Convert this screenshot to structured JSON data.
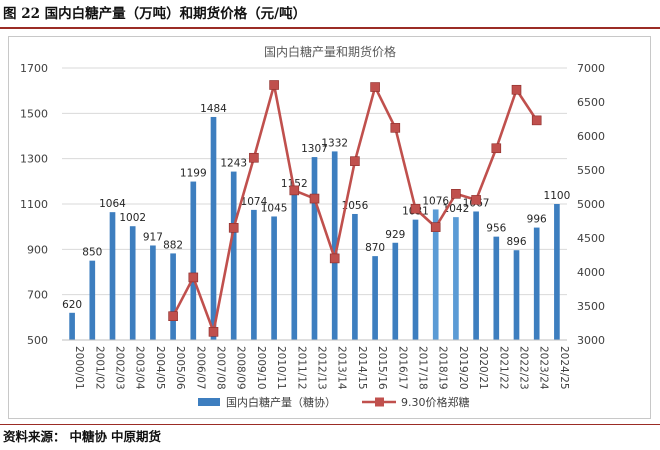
{
  "figure": {
    "caption": "图 22 国内白糖产量（万吨）和期货价格（元/吨）"
  },
  "source": {
    "label": "资料来源：",
    "items": [
      "中糖协",
      "中原期货"
    ]
  },
  "chart_data": {
    "type": "bar+line",
    "title": "国内白糖产量和期货价格",
    "categories": [
      "2000/01",
      "2001/02",
      "2002/03",
      "2003/04",
      "2004/05",
      "2005/06",
      "2006/07",
      "2007/08",
      "2008/09",
      "2009/10",
      "2010/11",
      "2011/12",
      "2012/13",
      "2013/14",
      "2014/15",
      "2015/16",
      "2016/17",
      "2017/18",
      "2018/19",
      "2019/20",
      "2020/21",
      "2021/22",
      "2022/23",
      "2023/24",
      "2024/25"
    ],
    "series": [
      {
        "name": "国内白糖产量（糖协）",
        "kind": "bar",
        "axis": "left",
        "color": "#3d7ebf",
        "highlight_color": "#5b9bd5",
        "values": [
          620,
          850,
          1064,
          1002,
          917,
          882,
          1199,
          1484,
          1243,
          1074,
          1045,
          1152,
          1307,
          1332,
          1056,
          870,
          929,
          1031,
          1076,
          1042,
          1067,
          956,
          896,
          996,
          1100
        ],
        "labels": [
          "620",
          "850",
          "1064",
          "1002",
          "917",
          "882",
          "1199",
          "1484",
          "1243",
          "1074",
          "1045",
          "1152",
          "1307",
          "1332",
          "1056",
          "870",
          "929",
          "1031",
          "1076",
          "1042",
          "1067",
          "956",
          "896",
          "996",
          "1100"
        ]
      },
      {
        "name": "9.30价格郑糖",
        "kind": "line",
        "axis": "right",
        "color": "#c0504d",
        "values": [
          null,
          null,
          null,
          null,
          null,
          3350,
          3920,
          3120,
          4650,
          5680,
          6750,
          5200,
          5080,
          4200,
          5630,
          6720,
          6120,
          4930,
          4660,
          5150,
          5060,
          5820,
          6680,
          6230,
          null
        ]
      }
    ],
    "left_axis": {
      "min": 500,
      "max": 1700,
      "step": 200,
      "ticks": [
        "500",
        "700",
        "900",
        "1100",
        "1300",
        "1500",
        "1700"
      ]
    },
    "right_axis": {
      "min": 3000,
      "max": 7000,
      "step": 500,
      "ticks": [
        "3000",
        "3500",
        "4000",
        "4500",
        "5000",
        "5500",
        "6000",
        "6500",
        "7000"
      ]
    },
    "grid": true,
    "legend_position": "bottom"
  }
}
